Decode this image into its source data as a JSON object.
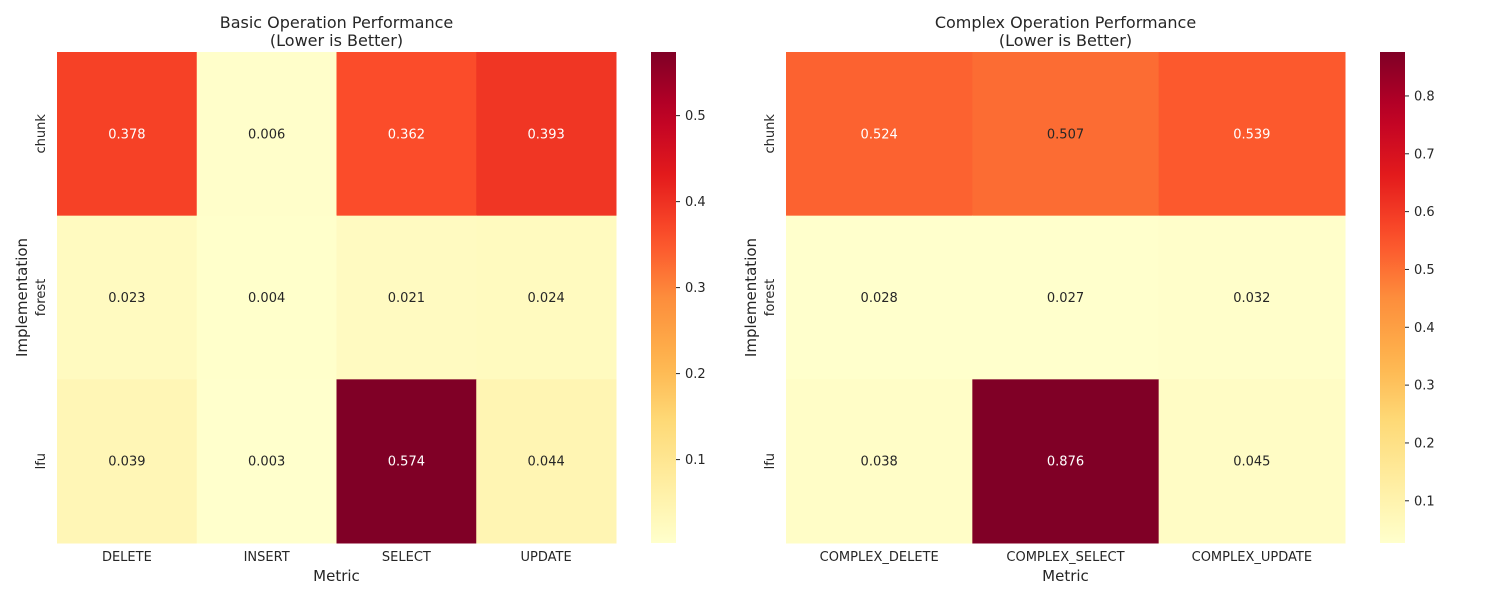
{
  "chart_data": [
    {
      "type": "heatmap",
      "title": "Basic Operation Performance\n(Lower is Better)",
      "xlabel": "Metric",
      "ylabel": "Implementation",
      "x_categories": [
        "DELETE",
        "INSERT",
        "SELECT",
        "UPDATE"
      ],
      "y_categories": [
        "chunk",
        "forest",
        "lfu"
      ],
      "values": [
        [
          0.378,
          0.006,
          0.362,
          0.393
        ],
        [
          0.023,
          0.004,
          0.021,
          0.024
        ],
        [
          0.039,
          0.003,
          0.574,
          0.044
        ]
      ],
      "colormap": "YlOrRd",
      "vmin": 0.003,
      "vmax": 0.574,
      "colorbar_ticks": [
        0.1,
        0.2,
        0.3,
        0.4,
        0.5
      ]
    },
    {
      "type": "heatmap",
      "title": "Complex Operation Performance\n(Lower is Better)",
      "xlabel": "Metric",
      "ylabel": "Implementation",
      "x_categories": [
        "COMPLEX_DELETE",
        "COMPLEX_SELECT",
        "COMPLEX_UPDATE"
      ],
      "y_categories": [
        "chunk",
        "forest",
        "lfu"
      ],
      "values": [
        [
          0.524,
          0.507,
          0.539
        ],
        [
          0.028,
          0.027,
          0.032
        ],
        [
          0.038,
          0.876,
          0.045
        ]
      ],
      "colormap": "YlOrRd",
      "vmin": 0.027,
      "vmax": 0.876,
      "colorbar_ticks": [
        0.1,
        0.2,
        0.3,
        0.4,
        0.5,
        0.6,
        0.7,
        0.8
      ]
    }
  ]
}
